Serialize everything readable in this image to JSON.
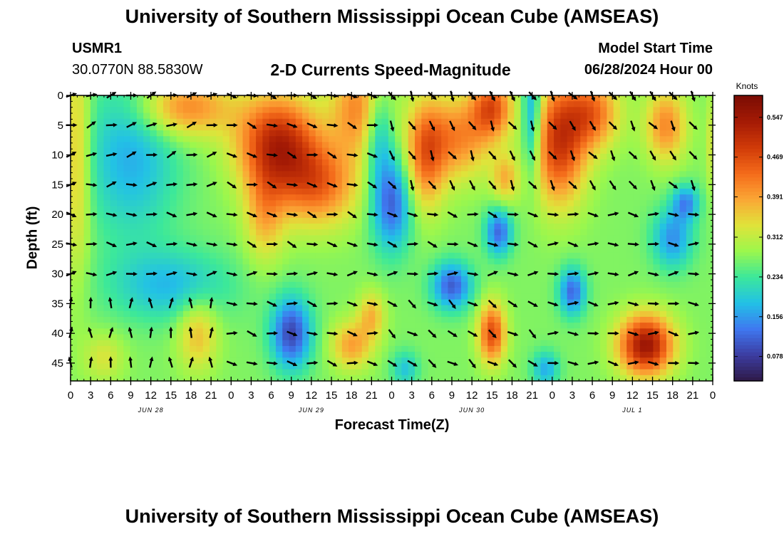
{
  "header": {
    "title": "University of Southern Mississippi Ocean Cube (AMSEAS)",
    "station_id": "USMR1",
    "coordinates": "30.0770N  88.5830W",
    "subtitle": "2-D Currents Speed-Magnitude",
    "model_start_label": "Model Start Time",
    "model_start_value": "06/28/2024 Hour 00"
  },
  "footer": {
    "title": "University of Southern Mississippi Ocean Cube (AMSEAS)"
  },
  "colorbar": {
    "units": "Knots",
    "tick_labels": [
      "0.547",
      "0.469",
      "0.391",
      "0.312",
      "0.234",
      "0.156",
      "0.078"
    ],
    "tick_values": [
      0.547,
      0.469,
      0.391,
      0.312,
      0.234,
      0.156,
      0.078
    ],
    "range": [
      0.03,
      0.59
    ],
    "colors": [
      "#2e1a47",
      "#3c3da2",
      "#3f78f0",
      "#22c1e6",
      "#3ce89a",
      "#9cf74c",
      "#e0e33a",
      "#fba635",
      "#f46a1a",
      "#cf3a08",
      "#a41a05",
      "#7a0c04"
    ]
  },
  "chart_data": {
    "type": "heatmap",
    "title": "2-D Currents Speed-Magnitude",
    "xlabel": "Forecast Time(Z)",
    "ylabel": "Depth (ft)",
    "xlim": [
      0,
      96
    ],
    "ylim": [
      0,
      48
    ],
    "x_tick_labels": [
      "0",
      "3",
      "6",
      "9",
      "12",
      "15",
      "18",
      "21",
      "0",
      "3",
      "6",
      "9",
      "12",
      "15",
      "18",
      "21",
      "0",
      "3",
      "6",
      "9",
      "12",
      "15",
      "18",
      "21",
      "0",
      "3",
      "6",
      "9",
      "12",
      "15",
      "18",
      "21",
      "0"
    ],
    "y_tick_labels": [
      "0",
      "5",
      "10",
      "15",
      "20",
      "25",
      "30",
      "35",
      "40",
      "45"
    ],
    "y_tick_values": [
      0,
      5,
      10,
      15,
      20,
      25,
      30,
      35,
      40,
      45
    ],
    "date_labels": [
      "JUN 28",
      "JUN 29",
      "JUN 30",
      "JUL 1"
    ],
    "date_label_hours": [
      12,
      36,
      60,
      84
    ],
    "arrow_times": [
      0,
      3,
      6,
      9,
      12,
      15,
      18,
      21,
      24,
      27,
      30,
      33,
      36,
      39,
      42,
      45,
      48,
      51,
      54,
      57,
      60,
      63,
      66,
      69,
      72,
      75,
      78,
      81,
      84,
      87,
      90,
      93,
      96
    ],
    "arrow_depths": [
      0,
      5,
      10,
      15,
      20,
      25,
      30,
      35,
      40,
      45
    ],
    "speed_blobs": [
      {
        "t": 9,
        "d": 10,
        "v": -0.1,
        "st": 7,
        "sd": 14
      },
      {
        "t": 15,
        "d": 32,
        "v": -0.09,
        "st": 9,
        "sd": 6
      },
      {
        "t": 19,
        "d": 40,
        "v": 0.1,
        "st": 3,
        "sd": 6
      },
      {
        "t": 5,
        "d": 44,
        "v": 0.06,
        "st": 3,
        "sd": 4
      },
      {
        "t": 1,
        "d": 10,
        "v": 0.1,
        "st": 2,
        "sd": 20
      },
      {
        "t": 17,
        "d": 2,
        "v": 0.15,
        "st": 7,
        "sd": 5
      },
      {
        "t": 31,
        "d": 8,
        "v": 0.24,
        "st": 6,
        "sd": 8
      },
      {
        "t": 37,
        "d": 15,
        "v": 0.16,
        "st": 6,
        "sd": 7
      },
      {
        "t": 29,
        "d": 20,
        "v": 0.1,
        "st": 3,
        "sd": 8
      },
      {
        "t": 43,
        "d": 2,
        "v": 0.14,
        "st": 4,
        "sd": 8
      },
      {
        "t": 42,
        "d": 42,
        "v": 0.12,
        "st": 3,
        "sd": 4
      },
      {
        "t": 45,
        "d": 37,
        "v": 0.1,
        "st": 2,
        "sd": 4
      },
      {
        "t": 33,
        "d": 40,
        "v": -0.18,
        "st": 3,
        "sd": 6
      },
      {
        "t": 48,
        "d": 18,
        "v": -0.16,
        "st": 3,
        "sd": 8
      },
      {
        "t": 46,
        "d": 6,
        "v": -0.1,
        "st": 2,
        "sd": 8
      },
      {
        "t": 53,
        "d": 10,
        "v": 0.16,
        "st": 3,
        "sd": 9
      },
      {
        "t": 58,
        "d": 7,
        "v": 0.14,
        "st": 5,
        "sd": 7
      },
      {
        "t": 63,
        "d": 2,
        "v": 0.18,
        "st": 3,
        "sd": 5
      },
      {
        "t": 65,
        "d": 14,
        "v": 0.1,
        "st": 2,
        "sd": 4
      },
      {
        "t": 64,
        "d": 23,
        "v": -0.15,
        "st": 2,
        "sd": 4
      },
      {
        "t": 57,
        "d": 32,
        "v": -0.16,
        "st": 3,
        "sd": 4
      },
      {
        "t": 63,
        "d": 40,
        "v": 0.2,
        "st": 2,
        "sd": 5
      },
      {
        "t": 69,
        "d": 4,
        "v": -0.14,
        "st": 1.5,
        "sd": 10
      },
      {
        "t": 73,
        "d": 8,
        "v": 0.22,
        "st": 4,
        "sd": 10
      },
      {
        "t": 78,
        "d": 3,
        "v": 0.16,
        "st": 4,
        "sd": 6
      },
      {
        "t": 75,
        "d": 33,
        "v": -0.15,
        "st": 2,
        "sd": 4
      },
      {
        "t": 86,
        "d": 42,
        "v": 0.28,
        "st": 4,
        "sd": 5
      },
      {
        "t": 90,
        "d": 24,
        "v": -0.12,
        "st": 3,
        "sd": 5
      },
      {
        "t": 92,
        "d": 18,
        "v": -0.12,
        "st": 2,
        "sd": 3
      },
      {
        "t": 89,
        "d": 5,
        "v": 0.14,
        "st": 3,
        "sd": 6
      },
      {
        "t": 96,
        "d": 8,
        "v": 0.06,
        "st": 1,
        "sd": 8
      },
      {
        "t": 71,
        "d": 46,
        "v": -0.1,
        "st": 2,
        "sd": 3
      },
      {
        "t": 50,
        "d": 46,
        "v": -0.08,
        "st": 2,
        "sd": 3
      }
    ]
  }
}
